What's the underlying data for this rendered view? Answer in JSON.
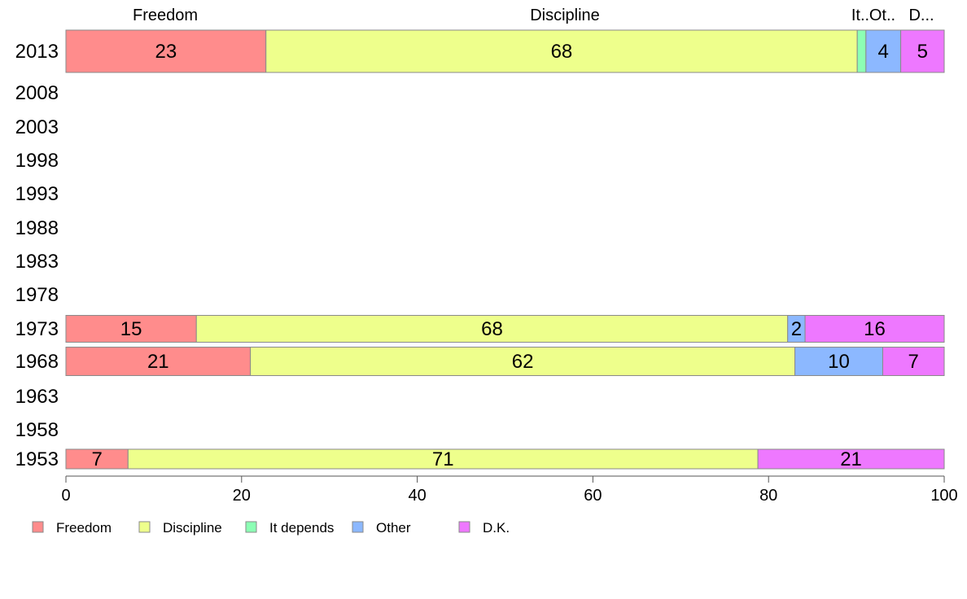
{
  "chart_data": {
    "type": "bar",
    "orientation": "horizontal",
    "stacked": true,
    "title": "",
    "xlabel": "",
    "ylabel": "",
    "xlim": [
      0,
      100
    ],
    "x_ticks": [
      "0",
      "20",
      "40",
      "60",
      "80",
      "100"
    ],
    "grid": false,
    "legend_position": "bottom",
    "categories": [
      "2013",
      "2008",
      "2003",
      "1998",
      "1993",
      "1988",
      "1983",
      "1978",
      "1973",
      "1968",
      "1963",
      "1958",
      "1953"
    ],
    "series": [
      {
        "name": "Freedom",
        "color": "#FF8C8C",
        "values": [
          23,
          null,
          null,
          null,
          null,
          null,
          null,
          null,
          15,
          21,
          null,
          null,
          7
        ]
      },
      {
        "name": "Discipline",
        "color": "#EEFF8C",
        "values": [
          68,
          null,
          null,
          null,
          null,
          null,
          null,
          null,
          68,
          62,
          null,
          null,
          71
        ]
      },
      {
        "name": "It depends",
        "color": "#8CFFB4",
        "values": [
          1,
          null,
          null,
          null,
          null,
          null,
          null,
          null,
          null,
          null,
          null,
          null,
          null
        ]
      },
      {
        "name": "Other",
        "color": "#8CB8FF",
        "values": [
          4,
          null,
          null,
          null,
          null,
          null,
          null,
          null,
          2,
          10,
          null,
          null,
          null
        ]
      },
      {
        "name": "D.K.",
        "color": "#EE78FF",
        "values": [
          5,
          null,
          null,
          null,
          null,
          null,
          null,
          null,
          16,
          7,
          null,
          null,
          21
        ]
      }
    ],
    "column_labels": [
      "Freedom",
      "Discipline",
      "It..",
      "Ot..",
      "D..."
    ],
    "segment_labels": {
      "2013": [
        "23",
        "68",
        "",
        "4",
        "5"
      ],
      "1973": [
        "15",
        "68",
        "",
        "2",
        "16"
      ],
      "1968": [
        "21",
        "62",
        "",
        "10",
        "7"
      ],
      "1953": [
        "7",
        "71",
        "",
        "",
        "21"
      ]
    }
  }
}
